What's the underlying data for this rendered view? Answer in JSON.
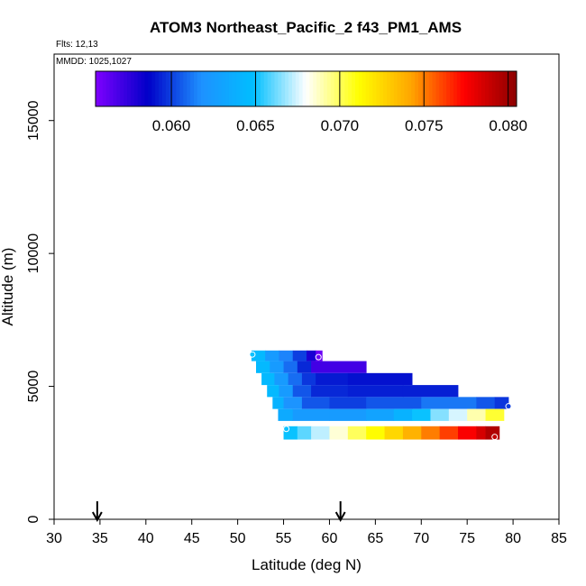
{
  "chart_data": {
    "type": "heatmap",
    "title": "ATOM3 Northeast_Pacific_2 f43_PM1_AMS",
    "flights_label": "Flts: 12,13",
    "dates_label": "MMDD: 1025,1027",
    "xlabel": "Latitude (deg N)",
    "ylabel": "Altitude (m)",
    "xlim": [
      30,
      85
    ],
    "ylim": [
      0,
      17500
    ],
    "x_ticks": [
      "30",
      "35",
      "40",
      "45",
      "50",
      "55",
      "60",
      "65",
      "70",
      "75",
      "80",
      "85"
    ],
    "y_ticks": [
      "0",
      "5000",
      "10000",
      "15000"
    ],
    "colorbar": {
      "range": [
        0.0555,
        0.0805
      ],
      "ticks": [
        "0.060",
        "0.065",
        "0.070",
        "0.075",
        "0.080"
      ],
      "colors": [
        "#7f00ff",
        "#0000c8",
        "#1e90ff",
        "#00bfff",
        "#ffffff",
        "#ffff00",
        "#ffa500",
        "#ff0000",
        "#8b0000"
      ]
    },
    "markers": [
      34.7,
      61.2
    ],
    "bands": [
      {
        "alt_low": 5950,
        "alt_high": 6350,
        "lat_start": 51.5,
        "cells": [
          [
            51.5,
            0.0645
          ],
          [
            53.0,
            0.0625
          ],
          [
            54.5,
            0.0615
          ],
          [
            56.0,
            0.06
          ],
          [
            57.5,
            0.058
          ],
          [
            58.5,
            0.056
          ]
        ],
        "lat_end": 59.2
      },
      {
        "alt_low": 5500,
        "alt_high": 5950,
        "lat_start": 52.0,
        "cells": [
          [
            52.0,
            0.0645
          ],
          [
            53.5,
            0.0625
          ],
          [
            55.0,
            0.061
          ],
          [
            56.5,
            0.0595
          ],
          [
            58.0,
            0.057
          ]
        ],
        "lat_end": 64.0
      },
      {
        "alt_low": 5050,
        "alt_high": 5500,
        "lat_start": 52.6,
        "cells": [
          [
            52.6,
            0.0645
          ],
          [
            54.0,
            0.0625
          ],
          [
            55.5,
            0.061
          ],
          [
            57.0,
            0.0598
          ],
          [
            58.5,
            0.0592
          ],
          [
            62.0,
            0.059
          ]
        ],
        "lat_end": 69.0
      },
      {
        "alt_low": 4600,
        "alt_high": 5050,
        "lat_start": 53.2,
        "cells": [
          [
            53.2,
            0.0645
          ],
          [
            54.5,
            0.0625
          ],
          [
            56.0,
            0.0605
          ],
          [
            58.0,
            0.0595
          ],
          [
            62.0,
            0.0593
          ],
          [
            68.0,
            0.0593
          ]
        ],
        "lat_end": 74.0
      },
      {
        "alt_low": 4150,
        "alt_high": 4600,
        "lat_start": 53.8,
        "cells": [
          [
            53.8,
            0.064
          ],
          [
            55.0,
            0.062
          ],
          [
            57.0,
            0.0605
          ],
          [
            60.0,
            0.06
          ],
          [
            64.0,
            0.0605
          ],
          [
            70.0,
            0.0612
          ],
          [
            76.0,
            0.0605
          ],
          [
            78.0,
            0.0598
          ]
        ],
        "lat_end": 79.5
      },
      {
        "alt_low": 3700,
        "alt_high": 4150,
        "lat_start": 54.4,
        "cells": [
          [
            54.4,
            0.0635
          ],
          [
            56.0,
            0.0625
          ],
          [
            60.0,
            0.0625
          ],
          [
            64.0,
            0.063
          ],
          [
            67.0,
            0.064
          ],
          [
            69.0,
            0.065
          ],
          [
            71.0,
            0.0665
          ],
          [
            73.0,
            0.0675
          ],
          [
            75.0,
            0.069
          ],
          [
            77.0,
            0.0705
          ]
        ],
        "lat_end": 79.0
      },
      {
        "alt_low": 3000,
        "alt_high": 3500,
        "lat_start": 55.0,
        "cells": [
          [
            55.0,
            0.065
          ],
          [
            56.5,
            0.066
          ],
          [
            58.0,
            0.0672
          ],
          [
            60.0,
            0.0685
          ],
          [
            62.0,
            0.07
          ],
          [
            64.0,
            0.0712
          ],
          [
            66.0,
            0.0725
          ],
          [
            68.0,
            0.0738
          ],
          [
            70.0,
            0.075
          ],
          [
            72.0,
            0.0762
          ],
          [
            74.0,
            0.0775
          ],
          [
            76.0,
            0.0785
          ],
          [
            77.0,
            0.0795
          ]
        ],
        "lat_end": 78.5
      }
    ],
    "circles": [
      {
        "lat": 51.6,
        "alt": 6200,
        "value": 0.065
      },
      {
        "lat": 58.8,
        "alt": 6100,
        "value": 0.056
      },
      {
        "lat": 79.5,
        "alt": 4250,
        "value": 0.06
      },
      {
        "lat": 55.3,
        "alt": 3400,
        "value": 0.065
      },
      {
        "lat": 78.0,
        "alt": 3100,
        "value": 0.079
      }
    ]
  }
}
